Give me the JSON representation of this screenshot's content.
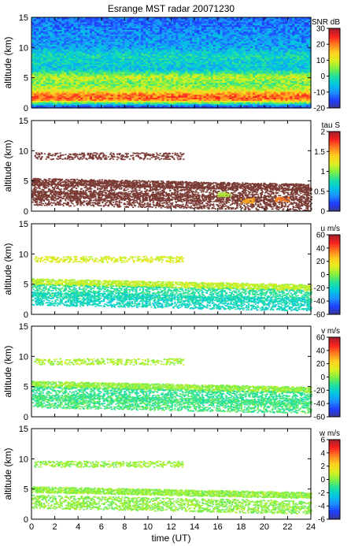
{
  "title": "Esrange MST radar 20071230",
  "xlabel": "time (UT)",
  "ylabel": "altitude (km)",
  "colors": {
    "colormap": [
      "#3a3a8c",
      "#1e3cff",
      "#1e90ff",
      "#00c8e0",
      "#20e0a0",
      "#80f040",
      "#e0f020",
      "#ffd020",
      "#ff8020",
      "#ff2020",
      "#a0202a"
    ],
    "tau_mask": "#7a3b34",
    "frame": "#000000"
  },
  "chart_data": [
    {
      "type": "heatmap",
      "name": "SNR",
      "title": "Esrange MST radar 20071230",
      "ylabel": "altitude (km)",
      "colorbar_label": "SNR dB",
      "xlim": [
        0,
        24
      ],
      "ylim": [
        0,
        15
      ],
      "x_ticks": [
        0,
        2,
        4,
        6,
        8,
        10,
        12,
        14,
        16,
        18,
        20,
        22,
        24
      ],
      "y_ticks": [
        0,
        5,
        10,
        15
      ],
      "color_range": [
        -20,
        30
      ],
      "color_ticks": [
        -20,
        -10,
        0,
        10,
        20,
        30
      ],
      "layers": [
        {
          "altitude_km": 0.3,
          "value": -15
        },
        {
          "altitude_km": 1.5,
          "value": 22
        },
        {
          "altitude_km": 2.3,
          "value": 20
        },
        {
          "altitude_km": 3.0,
          "value": 10
        },
        {
          "altitude_km": 4.0,
          "value": 4
        },
        {
          "altitude_km": 5.2,
          "value": 8
        },
        {
          "altitude_km": 6.5,
          "value": -5
        },
        {
          "altitude_km": 8.8,
          "value": -2
        },
        {
          "altitude_km": 10.0,
          "value": -8
        },
        {
          "altitude_km": 12.5,
          "value": -10
        },
        {
          "altitude_km": 14.5,
          "value": -12
        }
      ]
    },
    {
      "type": "heatmap",
      "name": "tau",
      "ylabel": "altitude (km)",
      "colorbar_label": "tau S",
      "xlim": [
        0,
        24
      ],
      "ylim": [
        0,
        15
      ],
      "x_ticks": [
        0,
        2,
        4,
        6,
        8,
        10,
        12,
        14,
        16,
        18,
        20,
        22,
        24
      ],
      "y_ticks": [
        0,
        5,
        10,
        15
      ],
      "color_range": [
        0,
        2
      ],
      "color_ticks": [
        0,
        0.5,
        1,
        1.5,
        2
      ],
      "layers": [
        {
          "altitude_km": 9.2,
          "value": 2
        },
        {
          "altitude_km": 4.5,
          "value": 2
        },
        {
          "altitude_km": 3.0,
          "value": 2
        },
        {
          "altitude_km": 1.8,
          "value": 2
        }
      ],
      "features": [
        {
          "t": 16.5,
          "altitude_km": 2.9,
          "value": 1.1
        },
        {
          "t": 18.5,
          "altitude_km": 1.8,
          "value": 1.5
        },
        {
          "t": 21.5,
          "altitude_km": 2.0,
          "value": 1.6
        }
      ]
    },
    {
      "type": "heatmap",
      "name": "u",
      "ylabel": "altitude (km)",
      "colorbar_label": "u m/s",
      "xlim": [
        0,
        24
      ],
      "ylim": [
        0,
        15
      ],
      "x_ticks": [
        0,
        2,
        4,
        6,
        8,
        10,
        12,
        14,
        16,
        18,
        20,
        22,
        24
      ],
      "y_ticks": [
        0,
        5,
        10,
        15
      ],
      "color_range": [
        -60,
        60
      ],
      "color_ticks": [
        -60,
        -40,
        -20,
        0,
        20,
        40,
        60
      ],
      "layers": [
        {
          "altitude_km": 9.2,
          "value": 12
        },
        {
          "altitude_km": 5.0,
          "value": 8
        },
        {
          "altitude_km": 3.5,
          "value": -12
        },
        {
          "altitude_km": 2.2,
          "value": -18
        }
      ]
    },
    {
      "type": "heatmap",
      "name": "v",
      "ylabel": "altitude (km)",
      "colorbar_label": "v m/s",
      "xlim": [
        0,
        24
      ],
      "ylim": [
        0,
        15
      ],
      "x_ticks": [
        0,
        2,
        4,
        6,
        8,
        10,
        12,
        14,
        16,
        18,
        20,
        22,
        24
      ],
      "y_ticks": [
        0,
        5,
        10,
        15
      ],
      "color_range": [
        -60,
        60
      ],
      "color_ticks": [
        -60,
        -40,
        -20,
        0,
        20,
        40,
        60
      ],
      "layers": [
        {
          "altitude_km": 9.2,
          "value": 5
        },
        {
          "altitude_km": 5.0,
          "value": 2
        },
        {
          "altitude_km": 3.5,
          "value": -10
        },
        {
          "altitude_km": 2.2,
          "value": -8
        }
      ]
    },
    {
      "type": "heatmap",
      "name": "w",
      "ylabel": "altitude (km)",
      "xlabel": "time (UT)",
      "colorbar_label": "w m/s",
      "xlim": [
        0,
        24
      ],
      "ylim": [
        0,
        15
      ],
      "x_ticks": [
        0,
        2,
        4,
        6,
        8,
        10,
        12,
        14,
        16,
        18,
        20,
        22,
        24
      ],
      "y_ticks": [
        0,
        5,
        10,
        15
      ],
      "color_range": [
        -6,
        6
      ],
      "color_ticks": [
        -6,
        -4,
        -2,
        0,
        2,
        4,
        6
      ],
      "layers": [
        {
          "altitude_km": 9.2,
          "value": 0.3
        },
        {
          "altitude_km": 4.5,
          "value": 0.2
        },
        {
          "altitude_km": 2.5,
          "value": 0.1
        }
      ]
    }
  ]
}
